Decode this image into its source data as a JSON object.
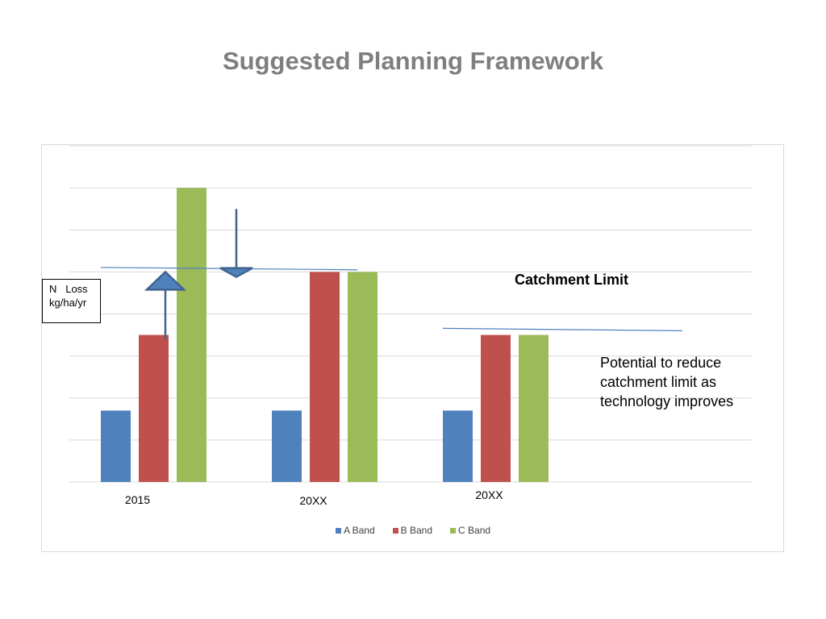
{
  "slide": {
    "title": "Suggested Planning Framework"
  },
  "annotations": {
    "y_label_line1": "N   Loss",
    "y_label_line2": "kg/ha/yr",
    "catchment_limit": "Catchment Limit",
    "potential_text": "Potential to reduce catchment limit  as technology improves"
  },
  "chart_data": {
    "type": "bar",
    "title": "",
    "xlabel": "",
    "ylabel": "N   Loss kg/ha/yr",
    "categories": [
      "2015",
      "20XX",
      "20XX"
    ],
    "series": [
      {
        "name": "A Band",
        "color": "#4f81bd",
        "values": [
          1.7,
          1.7,
          1.7
        ]
      },
      {
        "name": "B Band",
        "color": "#c0504d",
        "values": [
          3.5,
          5.0,
          3.5
        ]
      },
      {
        "name": "C Band",
        "color": "#9bbb59",
        "values": [
          7.0,
          5.0,
          3.5
        ]
      }
    ],
    "ylim": [
      0,
      8
    ],
    "y_ticks_shown": false,
    "grid": true,
    "legend_position": "bottom",
    "reference_lines": [
      {
        "label": "Catchment Limit",
        "value": 5.05,
        "x_start": 0,
        "x_end": 1.5
      },
      {
        "label": "Potential to reduce catchment limit  as technology improves",
        "value": 3.6,
        "x_start": 2.0,
        "x_end": 3.4
      }
    ],
    "arrows": [
      {
        "direction": "up",
        "from": 3.4,
        "to": 5.0,
        "category_index": 0
      },
      {
        "direction": "down",
        "from": 6.5,
        "to": 4.9,
        "category_index": 0
      }
    ]
  }
}
